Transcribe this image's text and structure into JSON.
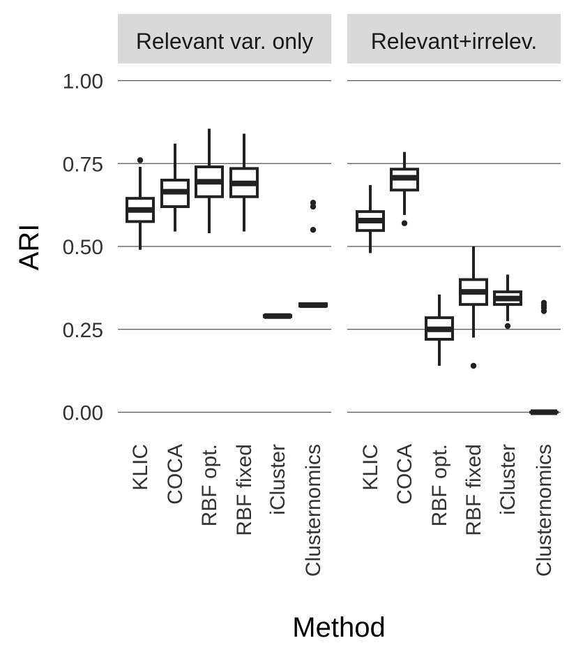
{
  "chart_data": {
    "type": "boxplot",
    "xlabel": "Method",
    "ylabel": "ARI",
    "ylim": [
      -0.05,
      1.07
    ],
    "yticks": [
      0.0,
      0.25,
      0.5,
      0.75,
      1.0
    ],
    "ytick_labels": [
      "0.00",
      "0.25",
      "0.50",
      "0.75",
      "1.00"
    ],
    "grid": "horizontal",
    "categories": [
      "KLIC",
      "COCA",
      "RBF opt.",
      "RBF fixed",
      "iCluster",
      "Clusternomics"
    ],
    "panels": [
      {
        "label": "Relevant var. only",
        "boxes": [
          {
            "method": "KLIC",
            "whisker_low": 0.49,
            "q1": 0.575,
            "median": 0.61,
            "q3": 0.645,
            "whisker_high": 0.74,
            "outliers": [
              0.76
            ]
          },
          {
            "method": "COCA",
            "whisker_low": 0.545,
            "q1": 0.62,
            "median": 0.665,
            "q3": 0.7,
            "whisker_high": 0.81,
            "outliers": []
          },
          {
            "method": "RBF opt.",
            "whisker_low": 0.54,
            "q1": 0.65,
            "median": 0.695,
            "q3": 0.74,
            "whisker_high": 0.855,
            "outliers": []
          },
          {
            "method": "RBF fixed",
            "whisker_low": 0.545,
            "q1": 0.65,
            "median": 0.69,
            "q3": 0.735,
            "whisker_high": 0.84,
            "outliers": []
          },
          {
            "method": "iCluster",
            "whisker_low": 0.285,
            "q1": 0.288,
            "median": 0.29,
            "q3": 0.292,
            "whisker_high": 0.295,
            "outliers": []
          },
          {
            "method": "Clusternomics",
            "whisker_low": 0.315,
            "q1": 0.32,
            "median": 0.323,
            "q3": 0.327,
            "whisker_high": 0.33,
            "outliers": [
              0.55,
              0.62,
              0.632
            ]
          }
        ]
      },
      {
        "label": "Relevant+irrelev.",
        "boxes": [
          {
            "method": "KLIC",
            "whisker_low": 0.48,
            "q1": 0.548,
            "median": 0.578,
            "q3": 0.605,
            "whisker_high": 0.685,
            "outliers": []
          },
          {
            "method": "COCA",
            "whisker_low": 0.595,
            "q1": 0.67,
            "median": 0.707,
            "q3": 0.733,
            "whisker_high": 0.785,
            "outliers": [
              0.57
            ]
          },
          {
            "method": "RBF opt.",
            "whisker_low": 0.14,
            "q1": 0.22,
            "median": 0.25,
            "q3": 0.285,
            "whisker_high": 0.355,
            "outliers": []
          },
          {
            "method": "RBF fixed",
            "whisker_low": 0.225,
            "q1": 0.325,
            "median": 0.363,
            "q3": 0.4,
            "whisker_high": 0.5,
            "outliers": [
              0.14
            ]
          },
          {
            "method": "iCluster",
            "whisker_low": 0.275,
            "q1": 0.325,
            "median": 0.343,
            "q3": 0.363,
            "whisker_high": 0.415,
            "outliers": [
              0.26
            ]
          },
          {
            "method": "Clusternomics",
            "whisker_low": 0.0,
            "q1": 0.0,
            "median": 0.0,
            "q3": 0.0,
            "whisker_high": 0.0,
            "outliers": [
              0.305,
              0.315,
              0.322,
              0.33
            ]
          }
        ]
      }
    ]
  }
}
